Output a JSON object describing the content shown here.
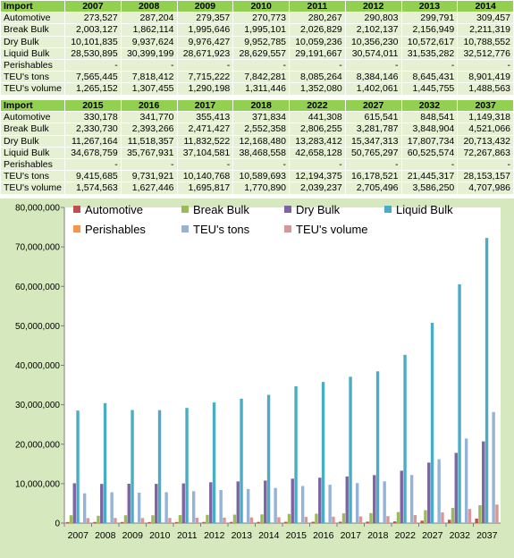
{
  "tables": [
    {
      "header_label": "Import",
      "years": [
        "2007",
        "2008",
        "2009",
        "2010",
        "2011",
        "2012",
        "2013",
        "2014"
      ],
      "rows": [
        {
          "label": "Automotive",
          "values": [
            "273,527",
            "287,204",
            "279,357",
            "270,773",
            "280,267",
            "290,803",
            "299,791",
            "309,457"
          ]
        },
        {
          "label": "Break Bulk",
          "values": [
            "2,003,127",
            "1,862,114",
            "1,995,646",
            "1,995,101",
            "2,026,829",
            "2,102,137",
            "2,156,949",
            "2,211,319"
          ]
        },
        {
          "label": "Dry Bulk",
          "values": [
            "10,101,835",
            "9,937,624",
            "9,976,427",
            "9,952,785",
            "10,059,236",
            "10,356,230",
            "10,572,617",
            "10,788,552"
          ]
        },
        {
          "label": "Liquid Bulk",
          "values": [
            "28,530,895",
            "30,399,199",
            "28,671,923",
            "28,629,557",
            "29,191,667",
            "30,574,011",
            "31,535,282",
            "32,512,776"
          ]
        },
        {
          "label": "Perishables",
          "values": [
            "-",
            "-",
            "-",
            "-",
            "-",
            "-",
            "-",
            "-"
          ]
        },
        {
          "label": "TEU's tons",
          "values": [
            "7,565,445",
            "7,818,412",
            "7,715,222",
            "7,842,281",
            "8,085,264",
            "8,384,146",
            "8,645,431",
            "8,901,419"
          ]
        },
        {
          "label": "TEU's volume",
          "values": [
            "1,265,152",
            "1,307,455",
            "1,290,198",
            "1,311,446",
            "1,352,080",
            "1,402,061",
            "1,445,755",
            "1,488,563"
          ]
        }
      ]
    },
    {
      "header_label": "Import",
      "years": [
        "2015",
        "2016",
        "2017",
        "2018",
        "2022",
        "2027",
        "2032",
        "2037"
      ],
      "rows": [
        {
          "label": "Automotive",
          "values": [
            "330,178",
            "341,770",
            "355,413",
            "371,834",
            "441,308",
            "615,541",
            "848,541",
            "1,149,318"
          ]
        },
        {
          "label": "Break Bulk",
          "values": [
            "2,330,730",
            "2,393,266",
            "2,471,427",
            "2,552,358",
            "2,806,255",
            "3,281,787",
            "3,848,904",
            "4,521,066"
          ]
        },
        {
          "label": "Dry Bulk",
          "values": [
            "11,267,164",
            "11,518,357",
            "11,832,522",
            "12,168,480",
            "13,283,412",
            "15,347,313",
            "17,807,734",
            "20,713,432"
          ]
        },
        {
          "label": "Liquid Bulk",
          "values": [
            "34,678,759",
            "35,767,931",
            "37,104,581",
            "38,468,558",
            "42,658,128",
            "50,765,297",
            "60,525,574",
            "72,267,863"
          ]
        },
        {
          "label": "Perishables",
          "values": [
            "-",
            "-",
            "-",
            "-",
            "-",
            "-",
            "-",
            "-"
          ]
        },
        {
          "label": "TEU's tons",
          "values": [
            "9,415,685",
            "9,731,921",
            "10,140,768",
            "10,589,693",
            "12,194,375",
            "16,178,521",
            "21,445,317",
            "28,153,157"
          ]
        },
        {
          "label": "TEU's volume",
          "values": [
            "1,574,563",
            "1,627,446",
            "1,695,817",
            "1,770,890",
            "2,039,237",
            "2,705,496",
            "3,586,250",
            "4,707,986"
          ]
        }
      ]
    }
  ],
  "chart_data": {
    "type": "bar",
    "categories": [
      "2007",
      "2008",
      "2009",
      "2010",
      "2011",
      "2012",
      "2013",
      "2014",
      "2015",
      "2016",
      "2017",
      "2018",
      "2022",
      "2027",
      "2032",
      "2037"
    ],
    "ylim": [
      0,
      80000000
    ],
    "yticks": [
      "0",
      "10,000,000",
      "20,000,000",
      "30,000,000",
      "40,000,000",
      "50,000,000",
      "60,000,000",
      "70,000,000",
      "80,000,000"
    ],
    "grid": false,
    "legend_position": "top",
    "series": [
      {
        "name": "Automotive",
        "color": "#c0504d",
        "values": [
          273527,
          287204,
          279357,
          270773,
          280267,
          290803,
          299791,
          309457,
          330178,
          341770,
          355413,
          371834,
          441308,
          615541,
          848541,
          1149318
        ]
      },
      {
        "name": "Break Bulk",
        "color": "#9bbb59",
        "values": [
          2003127,
          1862114,
          1995646,
          1995101,
          2026829,
          2102137,
          2156949,
          2211319,
          2330730,
          2393266,
          2471427,
          2552358,
          2806255,
          3281787,
          3848904,
          4521066
        ]
      },
      {
        "name": "Dry Bulk",
        "color": "#8064a2",
        "values": [
          10101835,
          9937624,
          9976427,
          9952785,
          10059236,
          10356230,
          10572617,
          10788552,
          11267164,
          11518357,
          11832522,
          12168480,
          13283412,
          15347313,
          17807734,
          20713432
        ]
      },
      {
        "name": "Liquid Bulk",
        "color": "#4bacc6",
        "values": [
          28530895,
          30399199,
          28671923,
          28629557,
          29191667,
          30574011,
          31535282,
          32512776,
          34678759,
          35767931,
          37104581,
          38468558,
          42658128,
          50765297,
          60525574,
          72267863
        ]
      },
      {
        "name": "Perishables",
        "color": "#f79646",
        "values": [
          0,
          0,
          0,
          0,
          0,
          0,
          0,
          0,
          0,
          0,
          0,
          0,
          0,
          0,
          0,
          0
        ]
      },
      {
        "name": "TEU's tons",
        "color": "#95b3d7",
        "values": [
          7565445,
          7818412,
          7715222,
          7842281,
          8085264,
          8384146,
          8645431,
          8901419,
          9415685,
          9731921,
          10140768,
          10589693,
          12194375,
          16178521,
          21445317,
          28153157
        ]
      },
      {
        "name": "TEU's volume",
        "color": "#d99694",
        "values": [
          1265152,
          1307455,
          1290198,
          1311446,
          1352080,
          1402061,
          1445755,
          1488563,
          1574563,
          1627446,
          1695817,
          1770890,
          2039237,
          2705496,
          3586250,
          4707986
        ]
      }
    ]
  }
}
